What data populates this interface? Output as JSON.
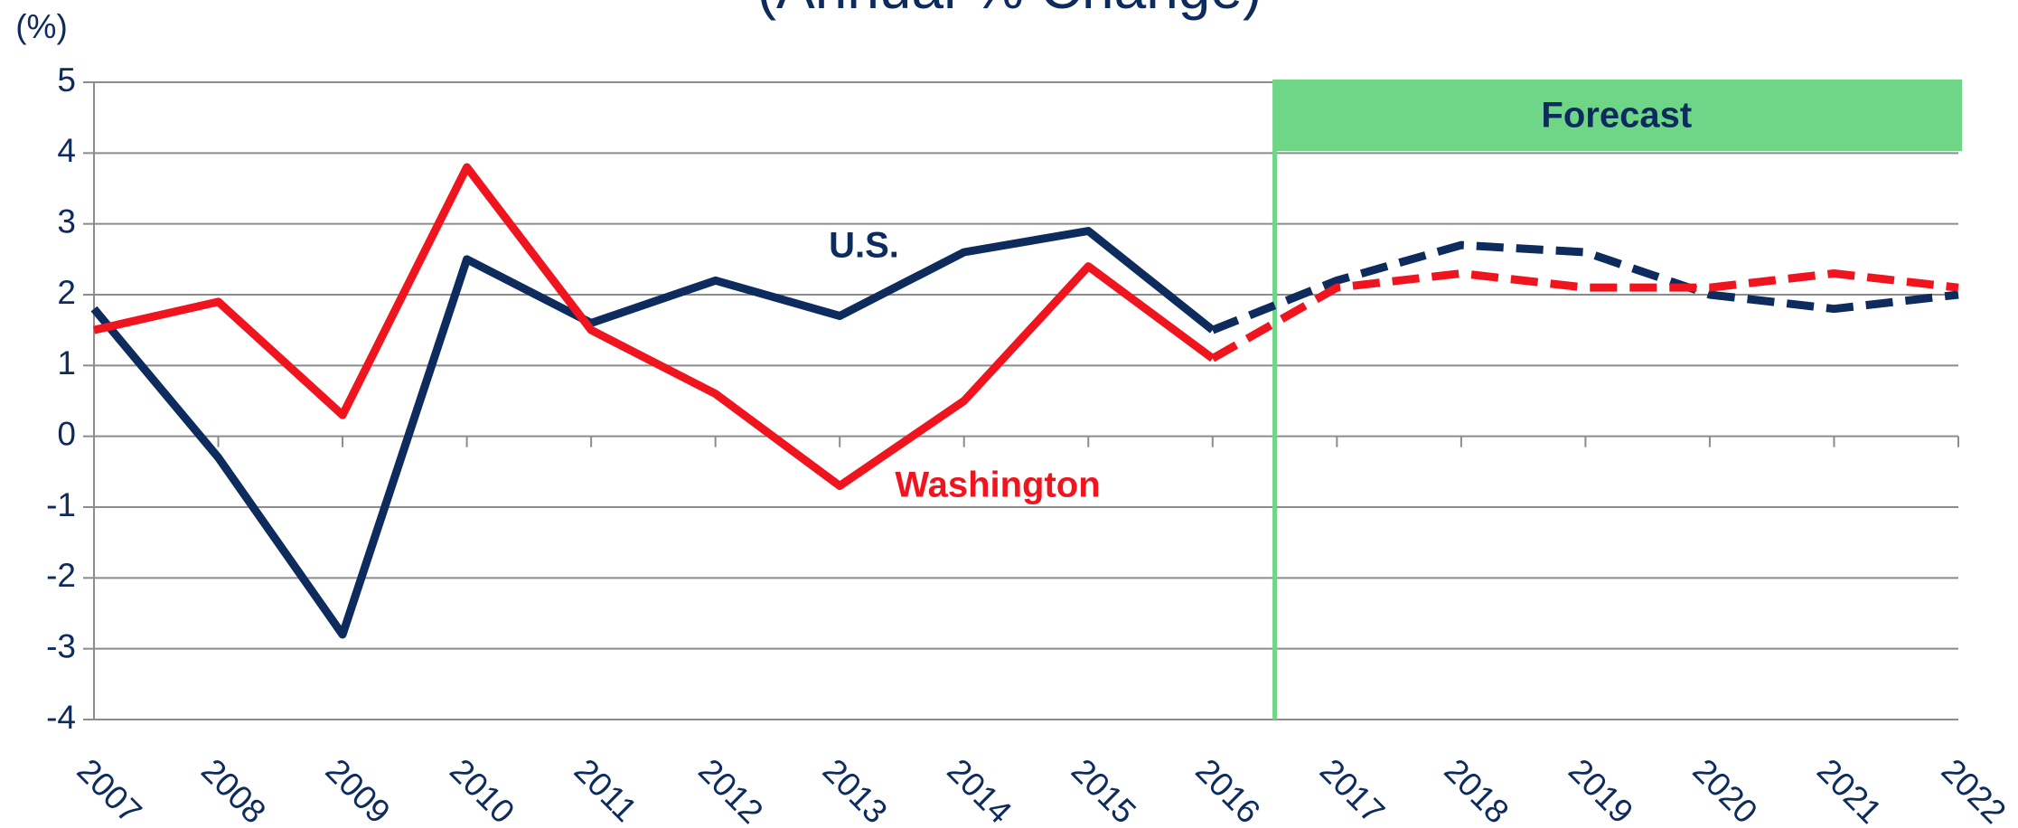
{
  "chart_data": {
    "type": "line",
    "title": "(Annual % Change)",
    "y_axis_label": "(%)",
    "categories": [
      "2007",
      "2008",
      "2009",
      "2010",
      "2011",
      "2012",
      "2013",
      "2014",
      "2015",
      "2016",
      "2017",
      "2018",
      "2019",
      "2020",
      "2021",
      "2022"
    ],
    "series": [
      {
        "name": "U.S.",
        "color": "#0d2b5c",
        "values": [
          1.8,
          -0.3,
          -2.8,
          2.5,
          1.6,
          2.2,
          1.7,
          2.6,
          2.9,
          1.5,
          2.2,
          2.7,
          2.6,
          2.0,
          1.8,
          2.0
        ]
      },
      {
        "name": "Washington",
        "color": "#f0141e",
        "values": [
          1.5,
          1.9,
          0.3,
          3.8,
          1.5,
          0.6,
          -0.7,
          0.5,
          2.4,
          1.1,
          2.1,
          2.3,
          2.1,
          2.1,
          2.3,
          2.1
        ]
      }
    ],
    "forecast_label": "Forecast",
    "forecast_start": "2016",
    "forecast_color": "#6fd687",
    "ylim": [
      -4,
      5
    ],
    "yticks": [
      -4,
      -3,
      -2,
      -1,
      0,
      1,
      2,
      3,
      4,
      5
    ],
    "grid": true
  }
}
